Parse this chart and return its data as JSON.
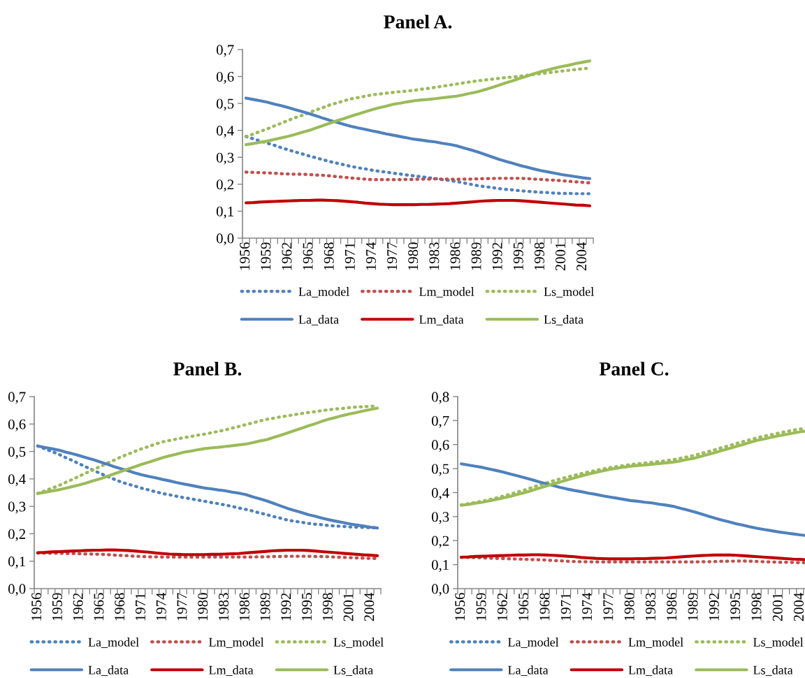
{
  "chart_data": [
    {
      "type": "line",
      "title": "Panel A.",
      "categories": [
        "1956",
        null,
        null,
        "1959",
        null,
        null,
        "1962",
        null,
        null,
        "1965",
        null,
        null,
        "1968",
        null,
        null,
        "1971",
        null,
        null,
        "1974",
        null,
        null,
        "1977",
        null,
        null,
        "1980",
        null,
        null,
        "1983",
        null,
        null,
        "1986",
        null,
        null,
        "1989",
        null,
        null,
        "1992",
        null,
        null,
        "1995",
        null,
        null,
        "1998",
        null,
        null,
        "2001",
        null,
        null,
        "2004",
        null
      ],
      "ylim": [
        0,
        0.7
      ],
      "yticks": [
        {
          "value": 0,
          "label": "0,0"
        },
        {
          "value": 0.1,
          "label": "0,1"
        },
        {
          "value": 0.2,
          "label": "0,2"
        },
        {
          "value": 0.3,
          "label": "0,3"
        },
        {
          "value": 0.4,
          "label": "0,4"
        },
        {
          "value": 0.5,
          "label": "0,5"
        },
        {
          "value": 0.6,
          "label": "0,6"
        },
        {
          "value": 0.7,
          "label": "0,7"
        }
      ],
      "grid": false,
      "legend": "bottom",
      "marker": "none",
      "series": [
        {
          "name": "La_model",
          "color": "#4f81bd",
          "line_style": "dotted",
          "values": [
            0.377,
            0.369,
            0.361,
            0.353,
            0.345,
            0.336,
            0.328,
            0.32,
            0.313,
            0.305,
            0.298,
            0.291,
            0.284,
            0.278,
            0.272,
            0.266,
            0.261,
            0.257,
            0.252,
            0.248,
            0.245,
            0.241,
            0.238,
            0.234,
            0.231,
            0.228,
            0.224,
            0.221,
            0.217,
            0.214,
            0.21,
            0.205,
            0.2,
            0.195,
            0.191,
            0.188,
            0.184,
            0.181,
            0.179,
            0.176,
            0.174,
            0.172,
            0.17,
            0.169,
            0.167,
            0.166,
            0.166,
            0.165,
            0.165,
            0.165
          ]
        },
        {
          "name": "Lm_model",
          "color": "#c0504d",
          "line_style": "dotted",
          "values": [
            0.245,
            0.244,
            0.243,
            0.242,
            0.241,
            0.239,
            0.238,
            0.237,
            0.237,
            0.236,
            0.234,
            0.233,
            0.231,
            0.228,
            0.226,
            0.223,
            0.221,
            0.219,
            0.217,
            0.217,
            0.217,
            0.217,
            0.217,
            0.218,
            0.218,
            0.219,
            0.219,
            0.22,
            0.219,
            0.219,
            0.218,
            0.219,
            0.219,
            0.22,
            0.221,
            0.221,
            0.222,
            0.222,
            0.222,
            0.222,
            0.221,
            0.219,
            0.218,
            0.216,
            0.215,
            0.213,
            0.211,
            0.209,
            0.207,
            0.205
          ]
        },
        {
          "name": "Ls_model",
          "color": "#9bbb59",
          "line_style": "dotted",
          "values": [
            0.377,
            0.386,
            0.396,
            0.405,
            0.416,
            0.426,
            0.437,
            0.447,
            0.456,
            0.466,
            0.476,
            0.485,
            0.495,
            0.502,
            0.51,
            0.517,
            0.522,
            0.527,
            0.532,
            0.535,
            0.538,
            0.541,
            0.544,
            0.546,
            0.549,
            0.553,
            0.556,
            0.56,
            0.564,
            0.568,
            0.572,
            0.576,
            0.58,
            0.584,
            0.587,
            0.59,
            0.593,
            0.596,
            0.598,
            0.601,
            0.604,
            0.608,
            0.611,
            0.614,
            0.617,
            0.62,
            0.623,
            0.626,
            0.629,
            0.631
          ]
        },
        {
          "name": "La_data",
          "color": "#4f81bd",
          "line_style": "solid",
          "values": [
            0.52,
            0.515,
            0.51,
            0.505,
            0.498,
            0.492,
            0.485,
            0.477,
            0.47,
            0.462,
            0.454,
            0.445,
            0.437,
            0.43,
            0.422,
            0.415,
            0.409,
            0.404,
            0.398,
            0.393,
            0.387,
            0.382,
            0.377,
            0.372,
            0.367,
            0.364,
            0.36,
            0.357,
            0.352,
            0.348,
            0.343,
            0.335,
            0.328,
            0.32,
            0.311,
            0.302,
            0.293,
            0.285,
            0.278,
            0.27,
            0.264,
            0.257,
            0.251,
            0.246,
            0.241,
            0.236,
            0.232,
            0.228,
            0.224,
            0.221
          ]
        },
        {
          "name": "Lm_data",
          "color": "#c00000",
          "line_style": "solid",
          "values": [
            0.131,
            0.132,
            0.134,
            0.135,
            0.136,
            0.137,
            0.138,
            0.139,
            0.14,
            0.14,
            0.141,
            0.141,
            0.14,
            0.139,
            0.137,
            0.135,
            0.133,
            0.13,
            0.128,
            0.126,
            0.125,
            0.124,
            0.124,
            0.124,
            0.124,
            0.125,
            0.125,
            0.126,
            0.127,
            0.128,
            0.13,
            0.132,
            0.134,
            0.136,
            0.138,
            0.139,
            0.14,
            0.14,
            0.14,
            0.139,
            0.137,
            0.135,
            0.133,
            0.131,
            0.129,
            0.127,
            0.125,
            0.123,
            0.122,
            0.12
          ]
        },
        {
          "name": "Ls_data",
          "color": "#9bbb59",
          "line_style": "solid",
          "values": [
            0.347,
            0.351,
            0.356,
            0.36,
            0.366,
            0.372,
            0.378,
            0.385,
            0.393,
            0.4,
            0.409,
            0.418,
            0.427,
            0.436,
            0.444,
            0.453,
            0.461,
            0.469,
            0.477,
            0.484,
            0.49,
            0.497,
            0.501,
            0.506,
            0.51,
            0.513,
            0.515,
            0.518,
            0.521,
            0.524,
            0.527,
            0.532,
            0.538,
            0.543,
            0.551,
            0.559,
            0.567,
            0.576,
            0.584,
            0.593,
            0.601,
            0.61,
            0.618,
            0.624,
            0.631,
            0.637,
            0.642,
            0.648,
            0.653,
            0.658
          ]
        }
      ]
    },
    {
      "type": "line",
      "title": "Panel B.",
      "categories": [
        "1956",
        null,
        null,
        "1959",
        null,
        null,
        "1962",
        null,
        null,
        "1965",
        null,
        null,
        "1968",
        null,
        null,
        "1971",
        null,
        null,
        "1974",
        null,
        null,
        "1977",
        null,
        null,
        "1980",
        null,
        null,
        "1983",
        null,
        null,
        "1986",
        null,
        null,
        "1989",
        null,
        null,
        "1992",
        null,
        null,
        "1995",
        null,
        null,
        "1998",
        null,
        null,
        "2001",
        null,
        null,
        "2004",
        null
      ],
      "ylim": [
        0,
        0.7
      ],
      "yticks": [
        {
          "value": 0,
          "label": "0,0"
        },
        {
          "value": 0.1,
          "label": "0,1"
        },
        {
          "value": 0.2,
          "label": "0,2"
        },
        {
          "value": 0.3,
          "label": "0,3"
        },
        {
          "value": 0.4,
          "label": "0,4"
        },
        {
          "value": 0.5,
          "label": "0,5"
        },
        {
          "value": 0.6,
          "label": "0,6"
        },
        {
          "value": 0.7,
          "label": "0,7"
        }
      ],
      "grid": false,
      "legend": "bottom",
      "marker": "none",
      "series": [
        {
          "name": "La_model",
          "color": "#4f81bd",
          "line_style": "dotted",
          "values": [
            0.52,
            0.51,
            0.5,
            0.49,
            0.478,
            0.467,
            0.455,
            0.443,
            0.432,
            0.42,
            0.41,
            0.399,
            0.389,
            0.381,
            0.374,
            0.366,
            0.36,
            0.353,
            0.347,
            0.342,
            0.337,
            0.332,
            0.328,
            0.323,
            0.319,
            0.314,
            0.31,
            0.305,
            0.3,
            0.294,
            0.289,
            0.283,
            0.276,
            0.27,
            0.263,
            0.257,
            0.25,
            0.246,
            0.242,
            0.238,
            0.235,
            0.233,
            0.23,
            0.228,
            0.227,
            0.225,
            0.224,
            0.223,
            0.222,
            0.222
          ]
        },
        {
          "name": "Lm_model",
          "color": "#c0504d",
          "line_style": "dotted",
          "values": [
            0.13,
            0.13,
            0.129,
            0.129,
            0.128,
            0.128,
            0.127,
            0.126,
            0.126,
            0.125,
            0.124,
            0.122,
            0.121,
            0.12,
            0.118,
            0.117,
            0.116,
            0.116,
            0.115,
            0.115,
            0.115,
            0.115,
            0.115,
            0.115,
            0.115,
            0.115,
            0.115,
            0.115,
            0.115,
            0.115,
            0.115,
            0.115,
            0.116,
            0.116,
            0.117,
            0.117,
            0.118,
            0.118,
            0.118,
            0.118,
            0.117,
            0.117,
            0.116,
            0.115,
            0.114,
            0.113,
            0.112,
            0.111,
            0.11,
            0.11
          ]
        },
        {
          "name": "Ls_model",
          "color": "#9bbb59",
          "line_style": "dotted",
          "values": [
            0.347,
            0.356,
            0.366,
            0.375,
            0.387,
            0.398,
            0.41,
            0.422,
            0.433,
            0.445,
            0.457,
            0.468,
            0.48,
            0.49,
            0.5,
            0.51,
            0.518,
            0.527,
            0.535,
            0.54,
            0.545,
            0.55,
            0.554,
            0.559,
            0.563,
            0.568,
            0.573,
            0.578,
            0.585,
            0.591,
            0.598,
            0.604,
            0.611,
            0.617,
            0.621,
            0.626,
            0.63,
            0.634,
            0.638,
            0.642,
            0.645,
            0.649,
            0.652,
            0.655,
            0.657,
            0.66,
            0.662,
            0.663,
            0.665,
            0.666
          ]
        },
        {
          "name": "La_data",
          "color": "#4f81bd",
          "line_style": "solid",
          "values": [
            0.52,
            0.515,
            0.51,
            0.505,
            0.498,
            0.492,
            0.485,
            0.477,
            0.47,
            0.462,
            0.454,
            0.445,
            0.437,
            0.43,
            0.422,
            0.415,
            0.409,
            0.404,
            0.398,
            0.393,
            0.387,
            0.382,
            0.377,
            0.372,
            0.367,
            0.364,
            0.36,
            0.357,
            0.352,
            0.348,
            0.343,
            0.335,
            0.328,
            0.32,
            0.311,
            0.302,
            0.293,
            0.285,
            0.278,
            0.27,
            0.264,
            0.257,
            0.251,
            0.246,
            0.241,
            0.236,
            0.232,
            0.228,
            0.224,
            0.221
          ]
        },
        {
          "name": "Lm_data",
          "color": "#c00000",
          "line_style": "solid",
          "values": [
            0.131,
            0.132,
            0.134,
            0.135,
            0.136,
            0.137,
            0.138,
            0.139,
            0.14,
            0.14,
            0.141,
            0.141,
            0.14,
            0.139,
            0.137,
            0.135,
            0.133,
            0.13,
            0.128,
            0.126,
            0.125,
            0.124,
            0.124,
            0.124,
            0.124,
            0.125,
            0.125,
            0.126,
            0.127,
            0.128,
            0.13,
            0.132,
            0.134,
            0.136,
            0.138,
            0.139,
            0.14,
            0.14,
            0.14,
            0.139,
            0.137,
            0.135,
            0.133,
            0.131,
            0.129,
            0.127,
            0.125,
            0.123,
            0.122,
            0.12
          ]
        },
        {
          "name": "Ls_data",
          "color": "#9bbb59",
          "line_style": "solid",
          "values": [
            0.347,
            0.351,
            0.356,
            0.36,
            0.366,
            0.372,
            0.378,
            0.385,
            0.393,
            0.4,
            0.409,
            0.418,
            0.427,
            0.436,
            0.444,
            0.453,
            0.461,
            0.469,
            0.477,
            0.484,
            0.49,
            0.497,
            0.501,
            0.506,
            0.51,
            0.513,
            0.515,
            0.518,
            0.521,
            0.524,
            0.527,
            0.532,
            0.538,
            0.543,
            0.551,
            0.559,
            0.567,
            0.576,
            0.584,
            0.593,
            0.601,
            0.61,
            0.618,
            0.624,
            0.631,
            0.637,
            0.642,
            0.648,
            0.653,
            0.658
          ]
        }
      ]
    },
    {
      "type": "line",
      "title": "Panel C.",
      "categories": [
        "1956",
        null,
        null,
        "1959",
        null,
        null,
        "1962",
        null,
        null,
        "1965",
        null,
        null,
        "1968",
        null,
        null,
        "1971",
        null,
        null,
        "1974",
        null,
        null,
        "1977",
        null,
        null,
        "1980",
        null,
        null,
        "1983",
        null,
        null,
        "1986",
        null,
        null,
        "1989",
        null,
        null,
        "1992",
        null,
        null,
        "1995",
        null,
        null,
        "1998",
        null,
        null,
        "2001",
        null,
        null,
        "2004",
        null
      ],
      "ylim": [
        0,
        0.8
      ],
      "yticks": [
        {
          "value": 0,
          "label": "0,0"
        },
        {
          "value": 0.1,
          "label": "0,1"
        },
        {
          "value": 0.2,
          "label": "0,2"
        },
        {
          "value": 0.3,
          "label": "0,3"
        },
        {
          "value": 0.4,
          "label": "0,4"
        },
        {
          "value": 0.5,
          "label": "0,5"
        },
        {
          "value": 0.6,
          "label": "0,6"
        },
        {
          "value": 0.7,
          "label": "0,7"
        },
        {
          "value": 0.8,
          "label": "0,8"
        }
      ],
      "grid": false,
      "legend": "bottom",
      "marker": "none",
      "series": [
        {
          "name": "La_model",
          "color": "#4f81bd",
          "line_style": "dotted",
          "values": [
            null,
            null,
            null,
            null,
            null,
            null,
            null,
            null,
            null,
            null,
            null,
            null,
            null,
            null,
            null,
            null,
            null,
            null,
            null,
            null,
            null,
            null,
            null,
            null,
            null,
            null,
            null,
            null,
            null,
            null,
            null,
            null,
            null,
            null,
            null,
            null,
            null,
            null,
            null,
            null,
            null,
            null,
            null,
            null,
            null,
            null,
            null,
            null,
            null,
            null
          ]
        },
        {
          "name": "Lm_model",
          "color": "#c0504d",
          "line_style": "dotted",
          "values": [
            0.13,
            0.13,
            0.129,
            0.128,
            0.127,
            0.126,
            0.125,
            0.124,
            0.123,
            0.122,
            0.121,
            0.12,
            0.119,
            0.117,
            0.116,
            0.114,
            0.113,
            0.112,
            0.112,
            0.111,
            0.111,
            0.111,
            0.111,
            0.111,
            0.111,
            0.111,
            0.111,
            0.111,
            0.111,
            0.111,
            0.111,
            0.111,
            0.111,
            0.111,
            0.112,
            0.112,
            0.113,
            0.114,
            0.114,
            0.115,
            0.115,
            0.114,
            0.113,
            0.112,
            0.111,
            0.11,
            0.11,
            0.109,
            0.108,
            0.108
          ]
        },
        {
          "name": "Ls_model",
          "color": "#9bbb59",
          "line_style": "dotted",
          "values": [
            0.349,
            0.354,
            0.359,
            0.364,
            0.371,
            0.378,
            0.386,
            0.394,
            0.403,
            0.411,
            0.421,
            0.431,
            0.44,
            0.449,
            0.457,
            0.465,
            0.472,
            0.479,
            0.486,
            0.492,
            0.498,
            0.504,
            0.508,
            0.513,
            0.517,
            0.52,
            0.523,
            0.526,
            0.529,
            0.533,
            0.537,
            0.543,
            0.549,
            0.555,
            0.563,
            0.571,
            0.579,
            0.588,
            0.596,
            0.605,
            0.613,
            0.621,
            0.629,
            0.636,
            0.642,
            0.648,
            0.654,
            0.66,
            0.665,
            0.668
          ]
        },
        {
          "name": "La_data",
          "color": "#4f81bd",
          "line_style": "solid",
          "values": [
            0.52,
            0.515,
            0.51,
            0.505,
            0.498,
            0.492,
            0.485,
            0.477,
            0.47,
            0.462,
            0.454,
            0.445,
            0.437,
            0.43,
            0.422,
            0.415,
            0.409,
            0.404,
            0.398,
            0.393,
            0.387,
            0.382,
            0.377,
            0.372,
            0.367,
            0.364,
            0.36,
            0.357,
            0.352,
            0.348,
            0.343,
            0.335,
            0.328,
            0.32,
            0.311,
            0.302,
            0.293,
            0.285,
            0.278,
            0.27,
            0.264,
            0.257,
            0.251,
            0.246,
            0.241,
            0.236,
            0.232,
            0.228,
            0.224,
            0.221
          ]
        },
        {
          "name": "Lm_data",
          "color": "#c00000",
          "line_style": "solid",
          "values": [
            0.131,
            0.132,
            0.134,
            0.135,
            0.136,
            0.137,
            0.138,
            0.139,
            0.14,
            0.14,
            0.141,
            0.141,
            0.14,
            0.139,
            0.137,
            0.135,
            0.133,
            0.13,
            0.128,
            0.126,
            0.125,
            0.124,
            0.124,
            0.124,
            0.124,
            0.125,
            0.125,
            0.126,
            0.127,
            0.128,
            0.13,
            0.132,
            0.134,
            0.136,
            0.138,
            0.139,
            0.14,
            0.14,
            0.14,
            0.139,
            0.137,
            0.135,
            0.133,
            0.131,
            0.129,
            0.127,
            0.125,
            0.123,
            0.122,
            0.12
          ]
        },
        {
          "name": "Ls_data",
          "color": "#9bbb59",
          "line_style": "solid",
          "values": [
            0.347,
            0.351,
            0.356,
            0.36,
            0.366,
            0.372,
            0.378,
            0.385,
            0.393,
            0.4,
            0.409,
            0.418,
            0.427,
            0.436,
            0.444,
            0.453,
            0.461,
            0.469,
            0.477,
            0.484,
            0.49,
            0.497,
            0.501,
            0.506,
            0.51,
            0.513,
            0.515,
            0.518,
            0.521,
            0.524,
            0.527,
            0.532,
            0.538,
            0.543,
            0.551,
            0.559,
            0.567,
            0.576,
            0.584,
            0.593,
            0.601,
            0.61,
            0.618,
            0.624,
            0.631,
            0.637,
            0.642,
            0.648,
            0.653,
            0.658
          ]
        }
      ]
    }
  ]
}
